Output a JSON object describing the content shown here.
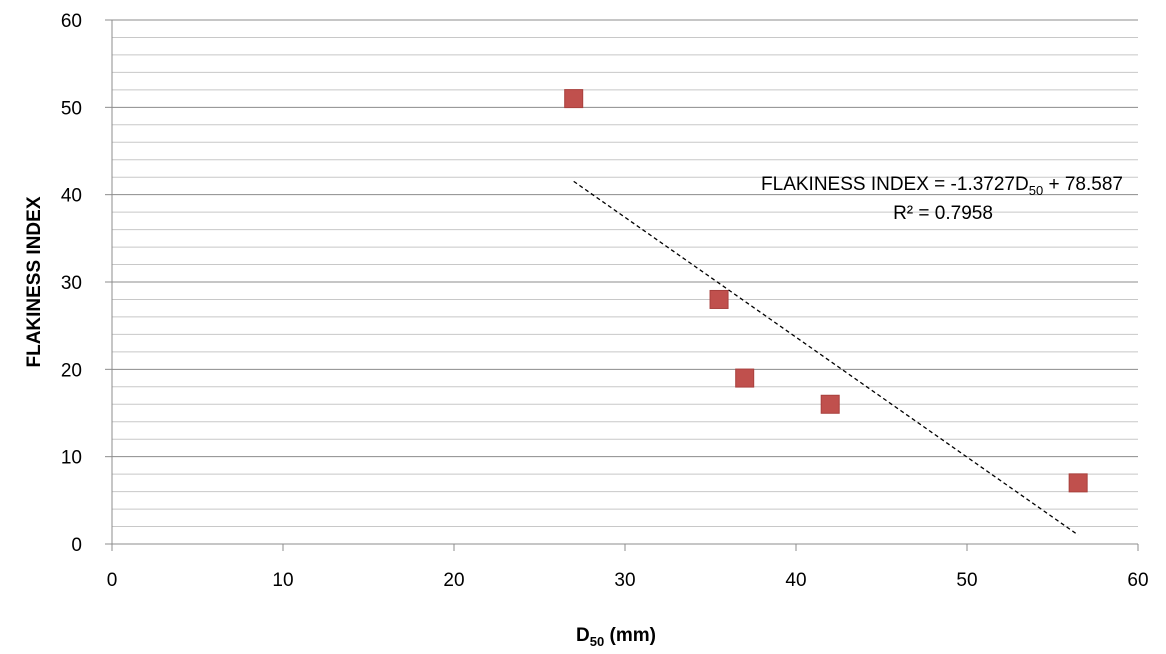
{
  "chart_data": {
    "type": "scatter",
    "title": "",
    "xlabel": {
      "main": "D",
      "subscript": "50",
      "suffix": " (mm)"
    },
    "ylabel": "FLAKINESS INDEX",
    "xlim": [
      0,
      60
    ],
    "ylim": [
      0,
      60
    ],
    "x_ticks": [
      0,
      10,
      20,
      30,
      40,
      50,
      60
    ],
    "y_ticks": [
      0,
      10,
      20,
      30,
      40,
      50,
      60
    ],
    "grid": {
      "major": true,
      "minor": true,
      "minor_step": 2
    },
    "series": [
      {
        "marker": "square",
        "color": "#C0504D",
        "points": [
          {
            "x": 27,
            "y": 51
          },
          {
            "x": 35.5,
            "y": 28
          },
          {
            "x": 37,
            "y": 19
          },
          {
            "x": 42,
            "y": 16
          },
          {
            "x": 56.5,
            "y": 7
          }
        ]
      }
    ],
    "trendline": {
      "type": "linear",
      "slope": -1.3727,
      "intercept": 78.587,
      "x_range": [
        27,
        56.5
      ],
      "style": "dashed",
      "equation_label": {
        "prefix": "FLAKINESS INDEX = -1.3727D",
        "subscript": "50",
        "suffix": " + 78.587"
      },
      "r_squared_label": "R² = 0.7958"
    }
  }
}
